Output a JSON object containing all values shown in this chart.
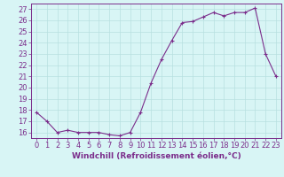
{
  "x": [
    0,
    1,
    2,
    3,
    4,
    5,
    6,
    7,
    8,
    9,
    10,
    11,
    12,
    13,
    14,
    15,
    16,
    17,
    18,
    19,
    20,
    21,
    22,
    23
  ],
  "y": [
    17.8,
    17.0,
    16.0,
    16.2,
    16.0,
    16.0,
    16.0,
    15.8,
    15.7,
    16.0,
    17.8,
    20.4,
    22.5,
    24.2,
    25.8,
    25.9,
    26.3,
    26.7,
    26.4,
    26.7,
    26.7,
    27.1,
    23.0,
    21.0
  ],
  "line_color": "#7b2d8b",
  "marker": "+",
  "marker_size": 3,
  "bg_color": "#d8f5f5",
  "grid_color": "#b8e0e0",
  "xlabel": "Windchill (Refroidissement éolien,°C)",
  "ylabel_ticks": [
    16,
    17,
    18,
    19,
    20,
    21,
    22,
    23,
    24,
    25,
    26,
    27
  ],
  "xlim": [
    -0.5,
    23.5
  ],
  "ylim": [
    15.5,
    27.5
  ],
  "xlabel_color": "#7b2d8b",
  "tick_color": "#7b2d8b",
  "label_fontsize": 6.5,
  "tick_fontsize": 6
}
